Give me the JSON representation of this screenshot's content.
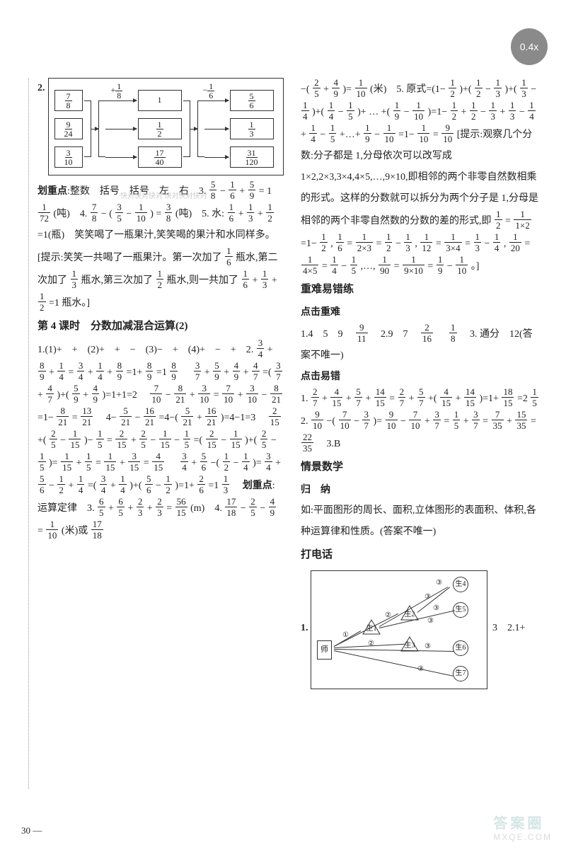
{
  "zoom": "0.4x",
  "page_number": "30",
  "watermark_small": "快对快对快对\n快对快对快对",
  "watermark_brand": {
    "line1": "答案圈",
    "line2": "MXQE.COM"
  },
  "diagram_q2": {
    "label_num": "2.",
    "col1_top": "+",
    "col1_frac": {
      "n": "1",
      "d": "8"
    },
    "col2_top": "−",
    "col2_frac": {
      "n": "1",
      "d": "6"
    },
    "left_fracs": [
      {
        "n": "7",
        "d": "8"
      },
      {
        "n": "9",
        "d": "24"
      },
      {
        "n": "3",
        "d": "10"
      }
    ],
    "mid_vals": [
      "1",
      {
        "n": "1",
        "d": "2"
      },
      {
        "n": "17",
        "d": "40"
      }
    ],
    "right_vals": [
      {
        "n": "5",
        "d": "6"
      },
      {
        "n": "1",
        "d": "3"
      },
      {
        "n": "31",
        "d": "120"
      }
    ]
  },
  "col1_flow_a": "划重点:整数　括号　括号　左　右　3. 5/8 − 1/6 + 5/9 = 1 1/72 (吨)　4. 7/8 − ( 3/5 − 1/10 ) = 3/8 (吨)　5. 水: 1/6 + 1/3 + 1/2 =1(瓶)　笑笑喝了一瓶果汁,笑笑喝的果汁和水同样多。[提示:笑笑一共喝了一瓶果汁。第一次加了 1/6 瓶水,第二次加了 1/3 瓶水,第三次加了 1/2 瓶水,则一共加了 1/6 + 1/3 + 1/2 =1 瓶水。]",
  "section4_title": "第 4 课时　分数加减混合运算(2)",
  "col1_flow_b": "1.(1)+　+　(2)+　+　−　(3)−　+　(4)+　−　+　2. 3/4 + 8/9 + 1/4 = 3/4 + 1/4 + 8/9 =1+ 8/9 =1 8/9 　 3/7 + 5/9 + 4/9 + 4/7 =( 3/7 + 4/7 )+( 5/9 + 4/9 )=1+1=2　 7/10 − 8/21 + 3/10 = 7/10 + 3/10 − 8/21 =1− 8/21 = 13/21 　4− 5/21 − 16/21 =4−( 5/21 + 16/21 )=4−1=3　 2/15 +( 2/5 − 1/15 )− 1/5 = 2/15 + 2/5 − 1/15 − 1/5 =( 2/15 − 1/15 )+( 2/5 − 1/5 )= 1/15 + 1/5 = 1/15 + 3/15 = 4/15 　 3/4 + 5/6 −( 1/2 − 1/4 )= 3/4 + 5/6 − 1/2 + 1/4 =( 3/4 + 1/4 )+( 5/6 − 1/2 )=1+ 2/6 =1 1/3 　划重点:运算定律　3. 6/5 + 6/5 + 2/3 + 2/3 = 56/15 (m)　4. 17/18 − 2/5 − 4/9 = 1/10 (米)或 17/18",
  "col2_flow_a": "−( 2/5 + 4/9 )= 1/10 (米)　5. 原式=(1− 1/2 )+( 1/2 − 1/3 )+( 1/3 − 1/4 )+( 1/4 − 1/5 )+ … +( 1/9 − 1/10 )=1− 1/2 + 1/2 − 1/3 + 1/3 − 1/4 + 1/4 − 1/5 +…+ 1/9 − 1/10 =1− 1/10 = 9/10 [提示:观察几个分数:分子都是 1,分母依次可以改写成 1×2,2×3,3×4,4×5,…,9×10,即相邻的两个非零自然数相乘的形式。这样的分数就可以拆分为两个分子是 1,分母是相邻的两个非零自然数的分数的差的形式,即 1/2 = 1/(1×2) =1− 1/2 , 1/6 = 1/(2×3) = 1/2 − 1/3 , 1/12 = 1/(3×4) = 1/3 − 1/4 , 1/20 = 1/(4×5) = 1/4 − 1/5 ,…, 1/90 = 1/(9×10) = 1/9 − 1/10 。]",
  "heading_znyc": "重难易错练",
  "heading_djzn": "点击重难",
  "col2_znyc": "1.4　5　9　 9/11 　2.9　7　 2/16 　 1/8 　3. 通分　12(答案不唯一)",
  "heading_djyc": "点击易错",
  "col2_djyc": "1. 2/7 + 4/15 + 5/7 + 14/15 = 2/7 + 5/7 +( 4/15 + 14/15 )=1+ 18/15 =2 1/5 　2. 9/10 −( 7/10 − 3/7 )= 9/10 − 7/10 + 3/7 = 1/5 + 3/7 = 7/35 + 15/35 = 22/35 　3.B",
  "heading_qjsx": "情景数学",
  "heading_guina": "归　纳",
  "col2_guina": "如:平面图形的周长、面积,立体图形的表面积、体积,各种运算律和性质。(答案不唯一)",
  "heading_ddh": "打电话",
  "tree": {
    "prefix": "1.",
    "suffix": "3　2.1+",
    "root": "师",
    "tri": [
      "生1",
      "生2",
      "生3"
    ],
    "circ": [
      "生4",
      "生5",
      "生6",
      "生7"
    ],
    "edge_labels": [
      "①",
      "②",
      "③",
      "②",
      "③",
      "③",
      "③",
      "③",
      "③"
    ]
  }
}
